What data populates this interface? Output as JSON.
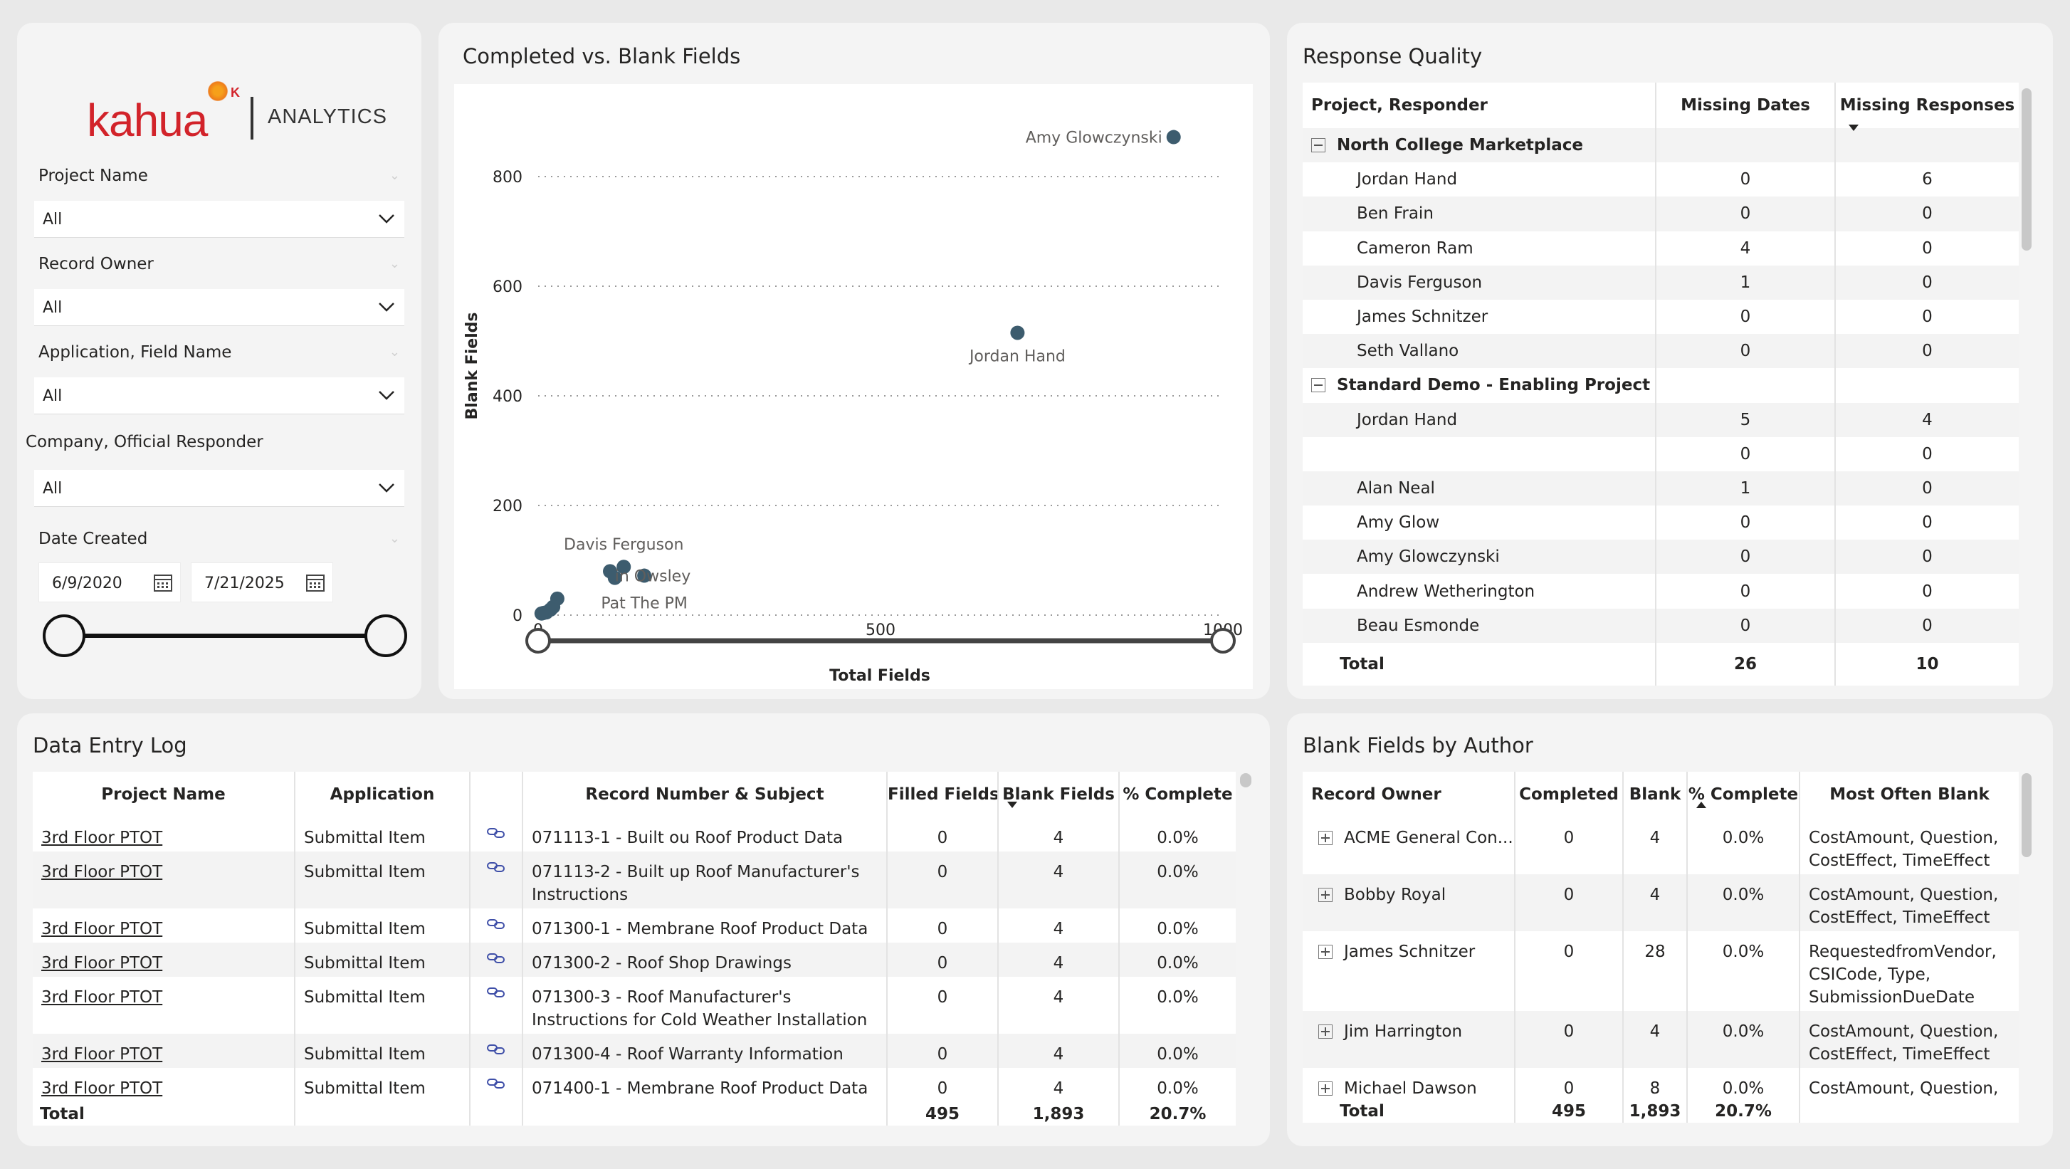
{
  "filters": {
    "logo_text": "kahua",
    "logo_k": "K",
    "logo_sub": "ANALYTICS",
    "project_name": {
      "label": "Project Name",
      "value": "All"
    },
    "record_owner": {
      "label": "Record Owner",
      "value": "All"
    },
    "application_field": {
      "label": "Application, Field Name",
      "value": "All"
    },
    "company_responder": {
      "label": "Company, Official Responder",
      "value": "All"
    },
    "date_created": {
      "label": "Date Created",
      "start": "6/9/2020",
      "end": "7/21/2025"
    }
  },
  "scatter": {
    "title": "Completed vs. Blank Fields",
    "chart_data": {
      "type": "scatter",
      "xlabel": "Total Fields",
      "ylabel": "Blank Fields",
      "xlim": [
        0,
        1000
      ],
      "ylim": [
        0,
        800
      ],
      "xticks": [
        0,
        500,
        1000
      ],
      "yticks": [
        0,
        200,
        400,
        600,
        800
      ],
      "grid": "horizontal dotted",
      "color": "#3d5c6e",
      "points": [
        {
          "label": "Amy Glowczynski",
          "x": 928,
          "y": 872
        },
        {
          "label": "Jordan Hand",
          "x": 700,
          "y": 515
        },
        {
          "label": "Davis Ferguson",
          "x": 125,
          "y": 88
        },
        {
          "label": "Kevin Owsley",
          "x": 105,
          "y": 80
        },
        {
          "label": "Pat The PM",
          "x": 155,
          "y": 72
        },
        {
          "label": "",
          "x": 112,
          "y": 68
        },
        {
          "label": "",
          "x": 28,
          "y": 30
        },
        {
          "label": "",
          "x": 22,
          "y": 15
        },
        {
          "label": "",
          "x": 18,
          "y": 10
        },
        {
          "label": "",
          "x": 12,
          "y": 5
        },
        {
          "label": "",
          "x": 8,
          "y": 4
        },
        {
          "label": "",
          "x": 5,
          "y": 3
        }
      ],
      "visible_labels": [
        {
          "text": "Amy Glowczynski",
          "x": 928,
          "y": 872
        },
        {
          "text": "Jordan Hand",
          "x": 700,
          "y": 515
        },
        {
          "text": "Davis Ferguson",
          "x": 125,
          "y": 88
        },
        {
          "text": "in Owsley",
          "x": 105,
          "y": 80
        },
        {
          "text": "Pat The PM",
          "x": 155,
          "y": 72
        }
      ],
      "range_slider": {
        "min": 0,
        "max": 1000
      }
    }
  },
  "response_quality": {
    "title": "Response Quality",
    "headers": [
      "Project, Responder",
      "Missing Dates",
      "Missing Responses"
    ],
    "groups": [
      {
        "name": "North College Marketplace",
        "rows": [
          {
            "name": "Jordan Hand",
            "dates": "0",
            "responses": "6"
          },
          {
            "name": "Ben Frain",
            "dates": "0",
            "responses": "0"
          },
          {
            "name": "Cameron Ram",
            "dates": "4",
            "responses": "0"
          },
          {
            "name": "Davis Ferguson",
            "dates": "1",
            "responses": "0"
          },
          {
            "name": "James Schnitzer",
            "dates": "0",
            "responses": "0"
          },
          {
            "name": "Seth Vallano",
            "dates": "0",
            "responses": "0"
          }
        ]
      },
      {
        "name": "Standard Demo - Enabling Project",
        "rows": [
          {
            "name": "Jordan Hand",
            "dates": "5",
            "responses": "4"
          },
          {
            "name": "",
            "dates": "0",
            "responses": "0"
          },
          {
            "name": "Alan Neal",
            "dates": "1",
            "responses": "0"
          },
          {
            "name": "Amy Glow",
            "dates": "0",
            "responses": "0"
          },
          {
            "name": "Amy Glowczynski",
            "dates": "0",
            "responses": "0"
          },
          {
            "name": "Andrew Wetherington",
            "dates": "0",
            "responses": "0"
          },
          {
            "name": "Beau Esmonde",
            "dates": "0",
            "responses": "0"
          }
        ]
      }
    ],
    "total": {
      "label": "Total",
      "dates": "26",
      "responses": "10"
    }
  },
  "data_entry_log": {
    "title": "Data Entry Log",
    "headers": [
      "Project Name",
      "Application",
      "",
      "Record Number & Subject",
      "Filled Fields",
      "Blank Fields",
      "% Complete"
    ],
    "rows": [
      {
        "project": "3rd Floor PTOT",
        "app": "Submittal Item",
        "subject": "071113-1 - Built ou Roof Product Data",
        "filled": "0",
        "blank": "4",
        "pct": "0.0%"
      },
      {
        "project": "3rd Floor PTOT",
        "app": "Submittal Item",
        "subject": "071113-2 - Built up Roof Manufacturer's Instructions",
        "filled": "0",
        "blank": "4",
        "pct": "0.0%"
      },
      {
        "project": "3rd Floor PTOT",
        "app": "Submittal Item",
        "subject": "071300-1 - Membrane Roof Product Data",
        "filled": "0",
        "blank": "4",
        "pct": "0.0%"
      },
      {
        "project": "3rd Floor PTOT",
        "app": "Submittal Item",
        "subject": "071300-2 - Roof Shop Drawings",
        "filled": "0",
        "blank": "4",
        "pct": "0.0%"
      },
      {
        "project": "3rd Floor PTOT",
        "app": "Submittal Item",
        "subject": "071300-3 - Roof Manufacturer's Instructions for Cold Weather Installation",
        "filled": "0",
        "blank": "4",
        "pct": "0.0%"
      },
      {
        "project": "3rd Floor PTOT",
        "app": "Submittal Item",
        "subject": "071300-4 - Roof Warranty Information",
        "filled": "0",
        "blank": "4",
        "pct": "0.0%"
      },
      {
        "project": "3rd Floor PTOT",
        "app": "Submittal Item",
        "subject": "071400-1 - Membrane Roof Product Data",
        "filled": "0",
        "blank": "4",
        "pct": "0.0%"
      }
    ],
    "total": {
      "label": "Total",
      "filled": "495",
      "blank": "1,893",
      "pct": "20.7%"
    }
  },
  "blank_by_author": {
    "title": "Blank Fields by Author",
    "headers": [
      "Record Owner",
      "Completed",
      "Blank",
      "% Complete",
      "Most Often Blank"
    ],
    "rows": [
      {
        "owner": "ACME  General Con...",
        "completed": "0",
        "blank": "4",
        "pct": "0.0%",
        "most": "CostAmount, Question, CostEffect, TimeEffect"
      },
      {
        "owner": "Bobby Royal",
        "completed": "0",
        "blank": "4",
        "pct": "0.0%",
        "most": "CostAmount, Question, CostEffect, TimeEffect"
      },
      {
        "owner": "James Schnitzer",
        "completed": "0",
        "blank": "28",
        "pct": "0.0%",
        "most": "RequestedfromVendor, CSICode, Type, SubmissionDueDate"
      },
      {
        "owner": "Jim Harrington",
        "completed": "0",
        "blank": "4",
        "pct": "0.0%",
        "most": "CostAmount, Question, CostEffect, TimeEffect"
      },
      {
        "owner": "Michael Dawson",
        "completed": "0",
        "blank": "8",
        "pct": "0.0%",
        "most": "CostAmount, Question,"
      }
    ],
    "total": {
      "label": "Total",
      "completed": "495",
      "blank": "1,893",
      "pct": "20.7%"
    }
  }
}
